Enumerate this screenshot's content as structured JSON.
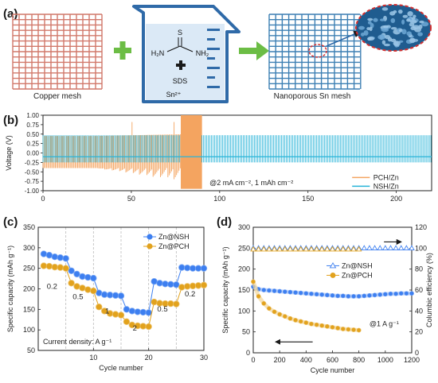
{
  "panel_labels": {
    "a": "(a)",
    "b": "(b)",
    "c": "(c)",
    "d": "(d)"
  },
  "schematic": {
    "copper_label": "Copper mesh",
    "product_label": "Nanoporous Sn mesh",
    "s_atom": "S",
    "h2n_left": "H₂N",
    "nh2_right": "NH₂",
    "sds_label": "SDS",
    "sn_label": "Sn²⁺",
    "colors": {
      "copper": "#d1786a",
      "sn_mesh": "#3c7fb3",
      "plus": "#6cbd45",
      "arrow": "#6cbd45",
      "beaker": "#2f6aa8",
      "solution": "#dbe9f6"
    }
  },
  "chart_data": [
    {
      "type": "line",
      "panel": "b",
      "ylabel": "Voltage (V)",
      "xlim": [
        0,
        220
      ],
      "ylim": [
        -1.0,
        1.0
      ],
      "xticks": [
        0,
        50,
        100,
        150,
        200
      ],
      "yticks": [
        -1.0,
        -0.75,
        -0.5,
        -0.25,
        0.0,
        0.25,
        0.5,
        0.75,
        1.0
      ],
      "annotation": "@2 mA cm⁻², 1 mAh cm⁻²",
      "legend_position": "bottom-right",
      "series": [
        {
          "name": "PCH/Zn",
          "color": "#f4a460",
          "segments": [
            {
              "x_start": 0,
              "x_end": 78,
              "plateau_v": 0.45,
              "cycle_v": -0.2
            },
            {
              "x_start": 78,
              "x_end": 90,
              "short_circuit": [
                -0.95,
                1.0
              ]
            }
          ]
        },
        {
          "name": "NSH/Zn",
          "color": "#28b4d8",
          "segments": [
            {
              "x_start": 0,
              "x_end": 220,
              "plateau_v": 0.47,
              "cycle_v": -0.1
            }
          ]
        }
      ]
    },
    {
      "type": "scatter",
      "panel": "c",
      "xlabel": "Cycle number",
      "ylabel": "Specific capacity (mAh g⁻¹)",
      "xlim": [
        0,
        30
      ],
      "ylim": [
        50,
        350
      ],
      "xticks": [
        10,
        20,
        30
      ],
      "yticks": [
        50,
        100,
        150,
        200,
        250,
        300,
        350
      ],
      "annotation": "Current density: A g⁻¹",
      "rate_labels": [
        {
          "text": "0.2",
          "x": 2.5,
          "y": 200
        },
        {
          "text": "0.5",
          "x": 7.2,
          "y": 175
        },
        {
          "text": "1",
          "x": 12.5,
          "y": 140
        },
        {
          "text": "2",
          "x": 17.5,
          "y": 98
        },
        {
          "text": "0.5",
          "x": 22.5,
          "y": 145
        },
        {
          "text": "0.2",
          "x": 27.5,
          "y": 182
        }
      ],
      "legend_position": "top-right",
      "series": [
        {
          "name": "Zn@NSH",
          "color": "#3d7ff0",
          "x": [
            1,
            2,
            3,
            4,
            5,
            6,
            7,
            8,
            9,
            10,
            11,
            12,
            13,
            14,
            15,
            16,
            17,
            18,
            19,
            20,
            21,
            22,
            23,
            24,
            25,
            26,
            27,
            28,
            29,
            30
          ],
          "values": [
            285,
            282,
            278,
            276,
            274,
            244,
            236,
            230,
            228,
            226,
            190,
            186,
            185,
            184,
            183,
            150,
            146,
            144,
            143,
            142,
            218,
            214,
            212,
            211,
            210,
            252,
            251,
            250,
            250,
            250
          ]
        },
        {
          "name": "Zn@PCH",
          "color": "#e2a21d",
          "x": [
            1,
            2,
            3,
            4,
            5,
            6,
            7,
            8,
            9,
            10,
            11,
            12,
            13,
            14,
            15,
            16,
            17,
            18,
            19,
            20,
            21,
            22,
            23,
            24,
            25,
            26,
            27,
            28,
            29,
            30
          ],
          "values": [
            256,
            255,
            253,
            252,
            250,
            214,
            206,
            202,
            198,
            195,
            156,
            146,
            140,
            138,
            136,
            120,
            112,
            110,
            109,
            108,
            168,
            165,
            164,
            164,
            163,
            204,
            206,
            207,
            208,
            209
          ]
        }
      ]
    },
    {
      "type": "scatter",
      "panel": "d",
      "xlabel": "Cycle number",
      "ylabel": "Specific capacity (mAh g⁻¹)",
      "ylabel_right": "Columbic efficiency (%)",
      "xlim": [
        0,
        1200
      ],
      "ylim": [
        0,
        300
      ],
      "ylim_right": [
        0,
        120
      ],
      "xticks": [
        0,
        200,
        400,
        600,
        800,
        1000,
        1200
      ],
      "yticks": [
        0,
        50,
        100,
        150,
        200,
        250,
        300
      ],
      "yticks_right": [
        0,
        20,
        40,
        60,
        80,
        100,
        120
      ],
      "annotation": "@1 A g⁻¹",
      "legend_position": "center-left",
      "series": [
        {
          "name": "Zn@NSH",
          "color": "#3d7ff0",
          "axis": "left",
          "x": [
            0,
            40,
            80,
            120,
            160,
            200,
            240,
            280,
            320,
            360,
            400,
            440,
            480,
            520,
            560,
            600,
            640,
            680,
            720,
            760,
            800,
            840,
            880,
            920,
            960,
            1000,
            1040,
            1080,
            1120,
            1160,
            1200
          ],
          "values": [
            158,
            152,
            150,
            149,
            148,
            147,
            146,
            145,
            144,
            143,
            142,
            141,
            140,
            139,
            138,
            137,
            136,
            136,
            135,
            135,
            135,
            136,
            137,
            138,
            139,
            140,
            141,
            141,
            142,
            142,
            142
          ]
        },
        {
          "name": "Zn@PCH",
          "color": "#e2a21d",
          "axis": "left",
          "x": [
            0,
            40,
            80,
            120,
            160,
            200,
            240,
            280,
            320,
            360,
            400,
            440,
            480,
            520,
            560,
            600,
            640,
            680,
            720,
            760,
            800
          ],
          "values": [
            170,
            135,
            118,
            106,
            98,
            92,
            87,
            82,
            78,
            75,
            72,
            69,
            67,
            65,
            63,
            61,
            59,
            57,
            56,
            55,
            54
          ]
        },
        {
          "name": "CE Zn@NSH",
          "color": "#3d7ff0",
          "axis": "right",
          "marker": "triangle",
          "x_start": 0,
          "x_end": 1200,
          "value": 99.5
        },
        {
          "name": "CE Zn@PCH",
          "color": "#e2a21d",
          "axis": "right",
          "marker": "triangle",
          "x_start": 0,
          "x_end": 800,
          "value": 99.4
        }
      ]
    }
  ]
}
